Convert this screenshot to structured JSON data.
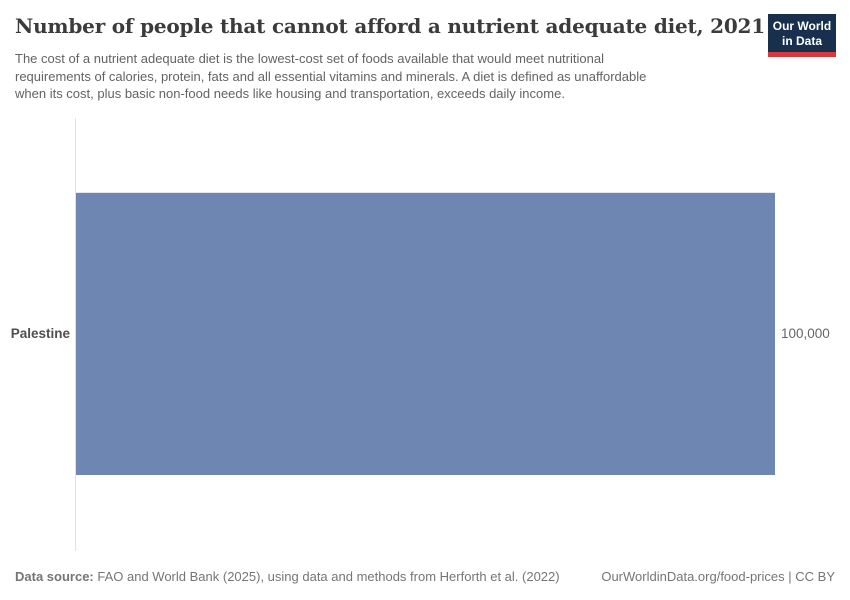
{
  "header": {
    "title": "Number of people that cannot afford a nutrient adequate diet, 2021",
    "subtitle_lines": [
      "The cost of a nutrient adequate diet is the lowest-cost set of foods available that would meet nutritional",
      "requirements of calories, protein, fats and all essential vitamins and minerals. A diet is defined as unaffordable",
      "when its cost, plus basic non-food needs like housing and transportation, exceeds daily income."
    ]
  },
  "logo": {
    "line1": "Our World",
    "line2": "in Data",
    "bg_color": "#18304e",
    "accent_color": "#d7383c"
  },
  "chart_data": {
    "type": "bar",
    "orientation": "horizontal",
    "title": "Number of people that cannot afford a nutrient adequate diet, 2021",
    "categories": [
      "Palestine"
    ],
    "values": [
      100000
    ],
    "value_labels": [
      "100,000"
    ],
    "xlabel": "",
    "ylabel": "",
    "xlim": [
      0,
      100000
    ],
    "bar_color": "#6e87b2",
    "axis_color": "#e2e2e2",
    "grid": false,
    "legend": false
  },
  "footer": {
    "source_label": "Data source:",
    "source_text": "FAO and World Bank (2025), using data and methods from Herforth et al. (2022)",
    "url": "OurWorldinData.org/food-prices",
    "divider": " | ",
    "license": "CC BY"
  }
}
